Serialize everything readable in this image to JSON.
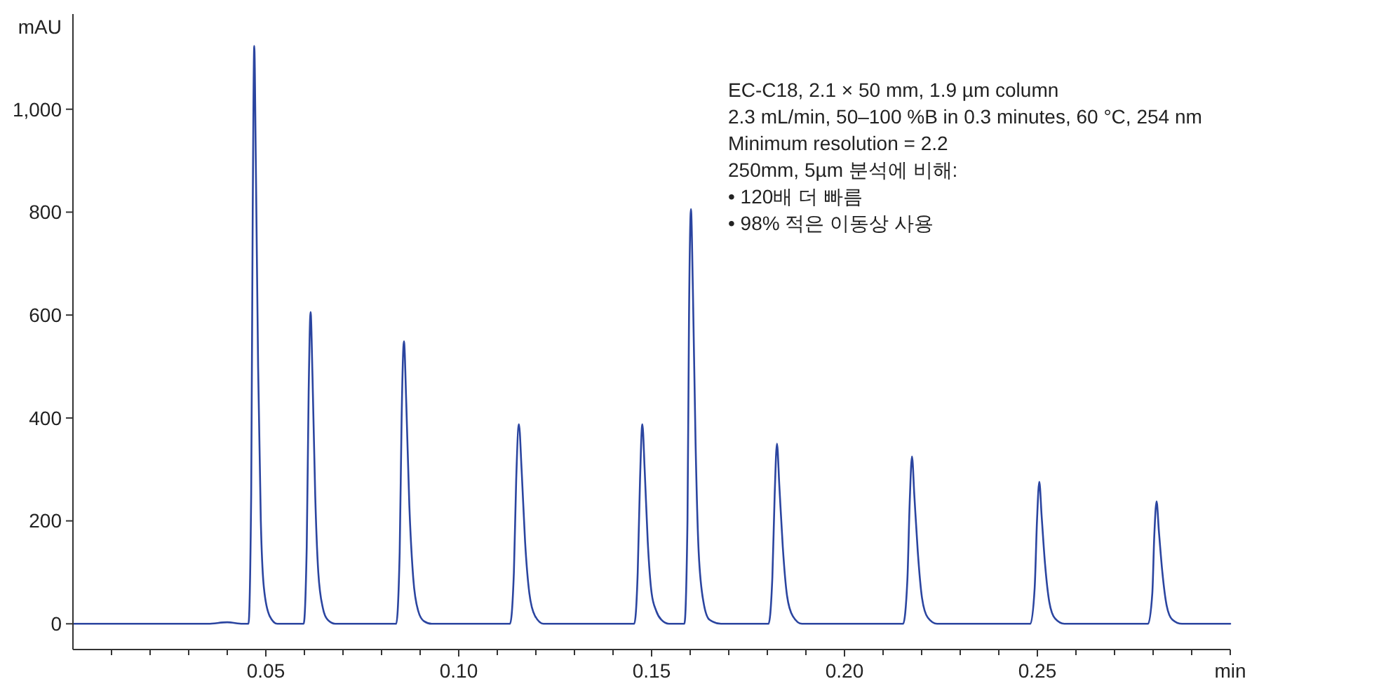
{
  "chart_data": {
    "type": "line",
    "xlabel": "min",
    "ylabel": "mAU",
    "annotations": [
      "EC-C18, 2.1 × 50 mm, 1.9 µm column",
      "2.3 mL/min, 50–100 %B in 0.3 minutes, 60 °C, 254 nm",
      "Minimum resolution = 2.2",
      "250mm, 5µm 분석에 비해:",
      "• 120배 더 빠름",
      "• 98% 적은 이동상 사용"
    ],
    "xlim": [
      0,
      0.3
    ],
    "ylim": [
      -50,
      1185
    ],
    "xticks": [
      {
        "value": 0.01,
        "label": null
      },
      {
        "value": 0.02,
        "label": null
      },
      {
        "value": 0.03,
        "label": null
      },
      {
        "value": 0.04,
        "label": null
      },
      {
        "value": 0.05,
        "label": "0.05"
      },
      {
        "value": 0.06,
        "label": null
      },
      {
        "value": 0.07,
        "label": null
      },
      {
        "value": 0.08,
        "label": null
      },
      {
        "value": 0.09,
        "label": null
      },
      {
        "value": 0.1,
        "label": "0.10"
      },
      {
        "value": 0.11,
        "label": null
      },
      {
        "value": 0.12,
        "label": null
      },
      {
        "value": 0.13,
        "label": null
      },
      {
        "value": 0.14,
        "label": null
      },
      {
        "value": 0.15,
        "label": "0.15"
      },
      {
        "value": 0.16,
        "label": null
      },
      {
        "value": 0.17,
        "label": null
      },
      {
        "value": 0.18,
        "label": null
      },
      {
        "value": 0.19,
        "label": null
      },
      {
        "value": 0.2,
        "label": "0.20"
      },
      {
        "value": 0.21,
        "label": null
      },
      {
        "value": 0.22,
        "label": null
      },
      {
        "value": 0.23,
        "label": null
      },
      {
        "value": 0.24,
        "label": null
      },
      {
        "value": 0.25,
        "label": "0.25"
      },
      {
        "value": 0.26,
        "label": null
      },
      {
        "value": 0.27,
        "label": null
      },
      {
        "value": 0.28,
        "label": null
      },
      {
        "value": 0.29,
        "label": null
      },
      {
        "value": 0.3,
        "label": null
      }
    ],
    "yticks": [
      0,
      200,
      400,
      600,
      800,
      {
        "value": 1000,
        "label": "1,000"
      }
    ],
    "grid": false,
    "marker": "none",
    "line_style": "solid",
    "series": [
      {
        "color": "#2b45a0",
        "x": [
          0,
          0.035,
          0.04,
          0.044,
          0.0455,
          0.0462,
          0.0466,
          0.047,
          0.0474,
          0.048,
          0.0487,
          0.0495,
          0.051,
          0.053,
          0.0598,
          0.0606,
          0.0611,
          0.0616,
          0.0621,
          0.0628,
          0.0636,
          0.0648,
          0.066,
          0.068,
          0.0838,
          0.0847,
          0.0852,
          0.0858,
          0.0864,
          0.0872,
          0.0882,
          0.0895,
          0.091,
          0.093,
          0.1133,
          0.1143,
          0.1149,
          0.1156,
          0.1163,
          0.1172,
          0.1183,
          0.1198,
          0.122,
          0.1455,
          0.1464,
          0.147,
          0.1476,
          0.1482,
          0.149,
          0.15,
          0.1512,
          0.1525,
          0.1545,
          0.1585,
          0.1593,
          0.1597,
          0.1602,
          0.1607,
          0.1614,
          0.1622,
          0.1635,
          0.165,
          0.168,
          0.1803,
          0.1813,
          0.1819,
          0.1825,
          0.1831,
          0.184,
          0.1851,
          0.1866,
          0.189,
          0.2152,
          0.2163,
          0.2169,
          0.2175,
          0.2181,
          0.219,
          0.2201,
          0.2216,
          0.224,
          0.2482,
          0.2493,
          0.2499,
          0.2505,
          0.2511,
          0.252,
          0.2531,
          0.2546,
          0.257,
          0.2787,
          0.2798,
          0.2803,
          0.2809,
          0.2815,
          0.2824,
          0.2835,
          0.285,
          0.2875,
          0.3
        ],
        "values": [
          0,
          0,
          3,
          0,
          0,
          250,
          800,
          1123,
          900,
          500,
          200,
          70,
          15,
          0,
          0,
          150,
          450,
          606,
          480,
          250,
          100,
          30,
          8,
          0,
          0,
          140,
          400,
          549,
          430,
          230,
          90,
          25,
          5,
          0,
          0,
          100,
          280,
          388,
          300,
          160,
          60,
          15,
          0,
          0,
          100,
          280,
          388,
          300,
          160,
          60,
          25,
          8,
          0,
          0,
          200,
          600,
          806,
          650,
          350,
          140,
          40,
          8,
          0,
          0,
          90,
          250,
          350,
          270,
          150,
          55,
          15,
          0,
          0,
          85,
          235,
          325,
          250,
          140,
          50,
          12,
          0,
          0,
          70,
          200,
          276,
          210,
          115,
          42,
          10,
          0,
          0,
          60,
          170,
          238,
          180,
          100,
          36,
          8,
          0,
          0
        ]
      }
    ]
  }
}
